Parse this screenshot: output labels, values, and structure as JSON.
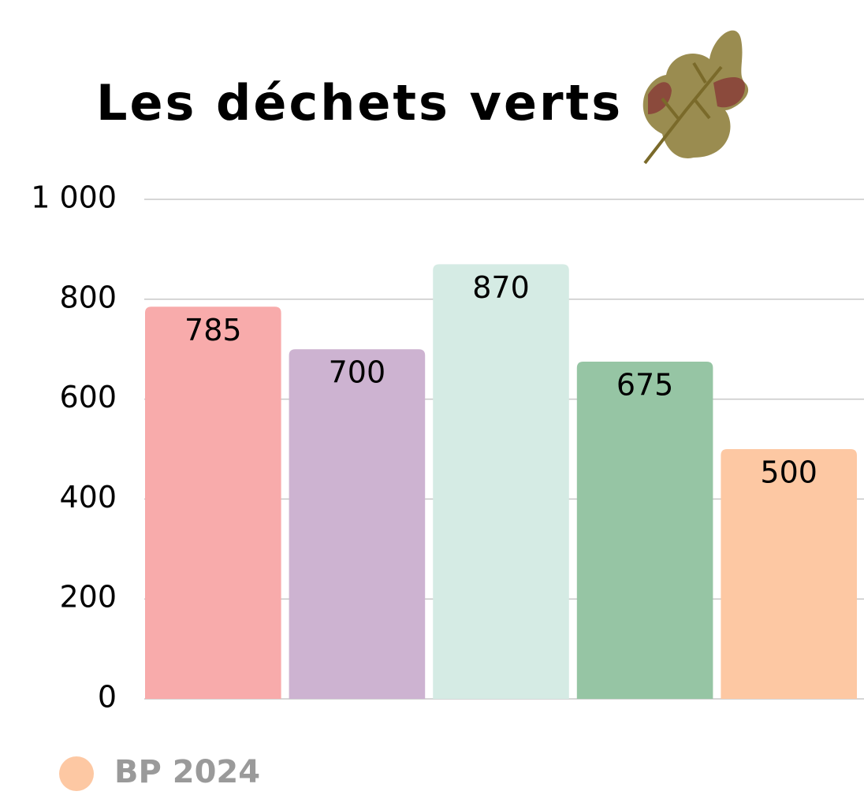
{
  "chart_data": {
    "type": "bar",
    "title": "Les déchets verts",
    "categories": [
      null,
      null,
      null,
      null,
      null
    ],
    "series": [
      {
        "name": "BP 2024",
        "color": "#fdc8a3",
        "values": [
          785,
          700,
          870,
          675,
          500
        ],
        "colors": [
          "#f8abab",
          "#cdb3d1",
          "#d5ebe4",
          "#96c5a4",
          "#fdc8a3"
        ]
      }
    ],
    "ylim": [
      0,
      1000
    ],
    "yticks": [
      0,
      200,
      400,
      600,
      800,
      {
        "value": 1000,
        "label": "1 000"
      }
    ],
    "grid": true,
    "legend": "bottom-left"
  }
}
